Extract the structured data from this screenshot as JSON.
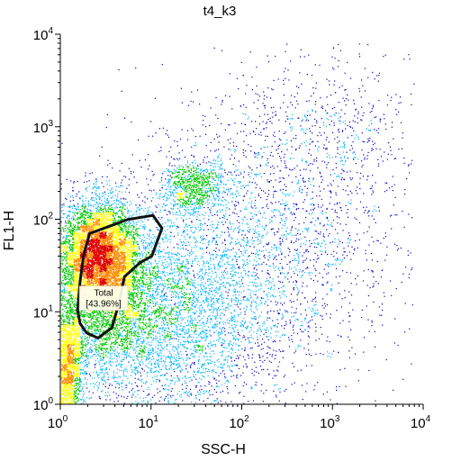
{
  "chart_data": {
    "type": "scatter",
    "title": "t4_k3",
    "xlabel": "SSC-H",
    "ylabel": "FL1-H",
    "x_scale": "log",
    "y_scale": "log",
    "xlim": [
      1,
      10000
    ],
    "ylim": [
      1,
      10000
    ],
    "ticks": [
      {
        "base": "10",
        "exp": "0",
        "value": 1
      },
      {
        "base": "10",
        "exp": "1",
        "value": 10
      },
      {
        "base": "10",
        "exp": "2",
        "value": 100
      },
      {
        "base": "10",
        "exp": "3",
        "value": 1000
      },
      {
        "base": "10",
        "exp": "4",
        "value": 10000
      }
    ],
    "grid": false,
    "colormap": [
      "#0000c8",
      "#00b4ff",
      "#00c800",
      "#ffff00",
      "#ff8c00",
      "#e00000"
    ],
    "gate": {
      "name": "Total",
      "percent_label": "[43.96%]",
      "vertices": [
        [
          2.1,
          70
        ],
        [
          5.5,
          99
        ],
        [
          10.5,
          110
        ],
        [
          13.2,
          80
        ],
        [
          10.2,
          40
        ],
        [
          7.6,
          34
        ],
        [
          5.1,
          24
        ],
        [
          4.9,
          20
        ],
        [
          4.5,
          13
        ],
        [
          3.7,
          6.7
        ],
        [
          2.6,
          5.2
        ],
        [
          1.95,
          5.9
        ],
        [
          1.65,
          7.5
        ],
        [
          1.55,
          10.5
        ],
        [
          1.65,
          21
        ],
        [
          1.8,
          40
        ]
      ]
    }
  }
}
